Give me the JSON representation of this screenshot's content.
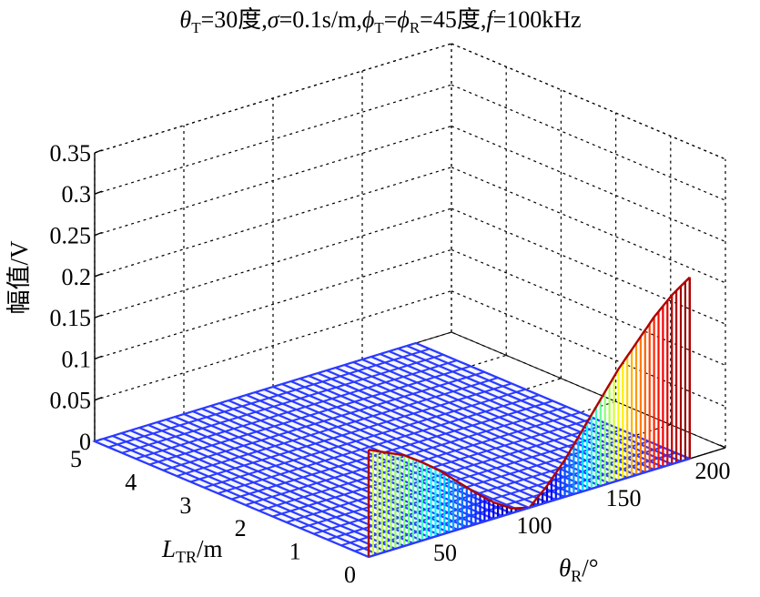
{
  "chart_data": {
    "type": "surface3d",
    "title": {
      "theta_sym": "θ",
      "theta_sub": "T",
      "part1": "=30度,",
      "sigma_sym": "σ",
      "part2": "=0.1s/m,",
      "phi_sym": "ϕ",
      "phi_sub_T": "T",
      "eq": "=",
      "phi_sym2": "ϕ",
      "phi_sub_R": "R",
      "part3": "=45度,",
      "f_sym": "f",
      "part4": "=100kHz"
    },
    "zlabel": "幅值/V",
    "ylabel": {
      "main": "L",
      "sub": "TR",
      "unit": "/m"
    },
    "xlabel": {
      "main": "θ",
      "sub": "R",
      "unit": "/°"
    },
    "x_ticks": [
      "50",
      "100",
      "150",
      "200"
    ],
    "y_ticks": [
      "0",
      "1",
      "2",
      "3",
      "4",
      "5"
    ],
    "z_ticks": [
      "0",
      "0.05",
      "0.1",
      "0.15",
      "0.2",
      "0.25",
      "0.3",
      "0.35"
    ],
    "xlim": [
      0,
      200
    ],
    "ylim": [
      0,
      5
    ],
    "zlim": [
      0,
      0.35
    ],
    "surface": {
      "theta_samples": [
        0,
        20,
        40,
        60,
        80,
        90,
        100,
        120,
        140,
        160,
        180,
        200
      ],
      "L_samples": [
        0,
        1,
        2,
        3,
        4,
        5
      ],
      "description": "Near-zero amplitude everywhere except at L_TR = 0, where amplitude rises from 0 at θR≈90 to ~0.13 at θR=0 and ~0.22 at θR=180",
      "ridge_at_L0": [
        {
          "theta": 0,
          "amp": 0.13
        },
        {
          "theta": 10,
          "amp": 0.12
        },
        {
          "theta": 20,
          "amp": 0.11
        },
        {
          "theta": 30,
          "amp": 0.095
        },
        {
          "theta": 40,
          "amp": 0.078
        },
        {
          "theta": 50,
          "amp": 0.058
        },
        {
          "theta": 60,
          "amp": 0.038
        },
        {
          "theta": 70,
          "amp": 0.02
        },
        {
          "theta": 80,
          "amp": 0.006
        },
        {
          "theta": 90,
          "amp": 0.0
        },
        {
          "theta": 100,
          "amp": 0.02
        },
        {
          "theta": 110,
          "amp": 0.045
        },
        {
          "theta": 120,
          "amp": 0.075
        },
        {
          "theta": 130,
          "amp": 0.105
        },
        {
          "theta": 140,
          "amp": 0.135
        },
        {
          "theta": 150,
          "amp": 0.16
        },
        {
          "theta": 160,
          "amp": 0.185
        },
        {
          "theta": 170,
          "amp": 0.205
        },
        {
          "theta": 180,
          "amp": 0.22
        }
      ]
    }
  }
}
